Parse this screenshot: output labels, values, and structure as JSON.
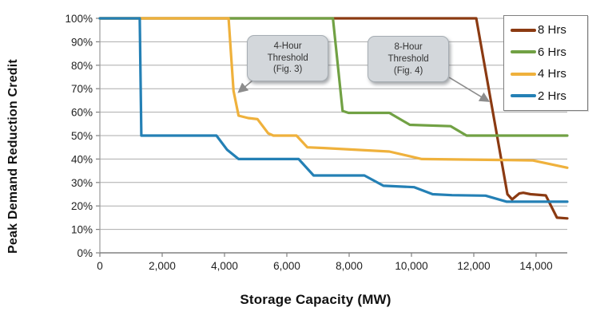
{
  "chart_data": {
    "type": "line",
    "xlabel": "Storage Capacity (MW)",
    "ylabel": "Peak Demand Reduction Credit",
    "xlim": [
      0,
      15000
    ],
    "ylim": [
      0,
      100
    ],
    "x_ticks": [
      0,
      2000,
      4000,
      6000,
      8000,
      10000,
      12000,
      14000
    ],
    "x_tick_labels": [
      "0",
      "2,000",
      "4,000",
      "6,000",
      "8,000",
      "10,000",
      "12,000",
      "14,000"
    ],
    "y_ticks": [
      0,
      10,
      20,
      30,
      40,
      50,
      60,
      70,
      80,
      90,
      100
    ],
    "y_tick_labels": [
      "0%",
      "10%",
      "20%",
      "30%",
      "40%",
      "50%",
      "60%",
      "70%",
      "80%",
      "90%",
      "100%"
    ],
    "grid": "horizontal",
    "legend_position": "top-right",
    "colors": {
      "grid": "#ababab",
      "axis": "#808080",
      "arrow": "#8c8c8c",
      "callout_fill": "#d3d7db",
      "tick_text": "#1f1f1f"
    },
    "series": [
      {
        "name": "8 Hrs",
        "color": "#8B3A12",
        "points": [
          [
            0,
            100
          ],
          [
            12080,
            100
          ],
          [
            13080,
            25
          ],
          [
            13230,
            22.8
          ],
          [
            13460,
            25.3
          ],
          [
            13590,
            25.6
          ],
          [
            13820,
            25
          ],
          [
            14310,
            24.5
          ],
          [
            14670,
            15
          ],
          [
            15000,
            14.7
          ]
        ]
      },
      {
        "name": "6 Hrs",
        "color": "#71A144",
        "points": [
          [
            0,
            100
          ],
          [
            7480,
            100
          ],
          [
            7790,
            60.5
          ],
          [
            7980,
            59.7
          ],
          [
            9290,
            59.7
          ],
          [
            9950,
            54.6
          ],
          [
            11260,
            54
          ],
          [
            11770,
            50
          ],
          [
            15000,
            50
          ]
        ]
      },
      {
        "name": "4 Hrs",
        "color": "#EFB13C",
        "points": [
          [
            0,
            100
          ],
          [
            4130,
            100
          ],
          [
            4290,
            69
          ],
          [
            4450,
            58.5
          ],
          [
            4760,
            57.5
          ],
          [
            5060,
            57
          ],
          [
            5400,
            51
          ],
          [
            5570,
            50
          ],
          [
            6310,
            50
          ],
          [
            6660,
            45
          ],
          [
            7200,
            44.7
          ],
          [
            9290,
            43.2
          ],
          [
            10330,
            40
          ],
          [
            12950,
            39.6
          ],
          [
            13900,
            39.4
          ],
          [
            15000,
            36.3
          ]
        ]
      },
      {
        "name": "2 Hrs",
        "color": "#2480B5",
        "points": [
          [
            0,
            100
          ],
          [
            1280,
            100
          ],
          [
            1330,
            50
          ],
          [
            3740,
            50
          ],
          [
            4080,
            44
          ],
          [
            4450,
            40
          ],
          [
            6380,
            40
          ],
          [
            6860,
            33
          ],
          [
            8490,
            33
          ],
          [
            9100,
            28.6
          ],
          [
            10090,
            28
          ],
          [
            10680,
            25
          ],
          [
            11300,
            24.6
          ],
          [
            12380,
            24.4
          ],
          [
            13060,
            21.8
          ],
          [
            15000,
            21.8
          ]
        ]
      }
    ],
    "annotations": [
      {
        "id": "4-hour-threshold",
        "lines": [
          "4-Hour",
          "Threshold",
          "(Fig. 3)"
        ],
        "box_center_mw": 6030,
        "box_center_pct": 83,
        "arrow_from_mw": 4900,
        "arrow_from_pct": 73.5,
        "arrow_to_mw": 4450,
        "arrow_to_pct": 68.5
      },
      {
        "id": "8-hour-threshold",
        "lines": [
          "8-Hour",
          "Threshold",
          "(Fig. 4)"
        ],
        "box_center_mw": 9900,
        "box_center_pct": 82.6,
        "arrow_from_mw": 11210,
        "arrow_from_pct": 74.8,
        "arrow_to_mw": 12480,
        "arrow_to_pct": 64.6
      }
    ]
  }
}
